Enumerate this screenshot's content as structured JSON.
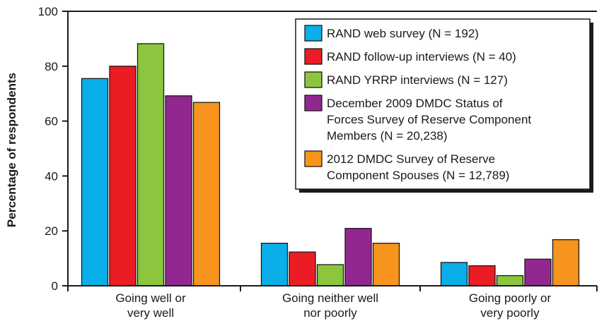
{
  "chart_data": {
    "type": "bar",
    "ylabel": "Percentage of respondents",
    "ylim": [
      0,
      100
    ],
    "yticks": [
      0,
      20,
      40,
      60,
      80,
      100
    ],
    "grid": false,
    "legend_position": "top-right",
    "categories": [
      [
        "Going well or",
        "very well"
      ],
      [
        "Going neither well",
        "nor poorly"
      ],
      [
        "Going poorly or",
        "very poorly"
      ]
    ],
    "series": [
      {
        "name": [
          "RAND web survey (N = 192)"
        ],
        "color": "#0aaee8",
        "values": [
          75.5,
          15.5,
          8.5
        ]
      },
      {
        "name": [
          "RAND follow-up interviews (N = 40)"
        ],
        "color": "#ec1c24",
        "values": [
          80,
          12.3,
          7.3
        ]
      },
      {
        "name": [
          "RAND YRRP interviews (N = 127)"
        ],
        "color": "#8cc63f",
        "values": [
          88.2,
          7.7,
          3.7
        ]
      },
      {
        "name": [
          "December 2009 DMDC Status of",
          "Forces Survey of Reserve Component",
          "Members (N = 20,238)"
        ],
        "color": "#92278f",
        "values": [
          69.2,
          20.9,
          9.7
        ]
      },
      {
        "name": [
          "2012 DMDC Survey of Reserve",
          "Component Spouses (N = 12,789)"
        ],
        "color": "#f7941d",
        "values": [
          66.8,
          15.5,
          16.8
        ]
      }
    ]
  }
}
